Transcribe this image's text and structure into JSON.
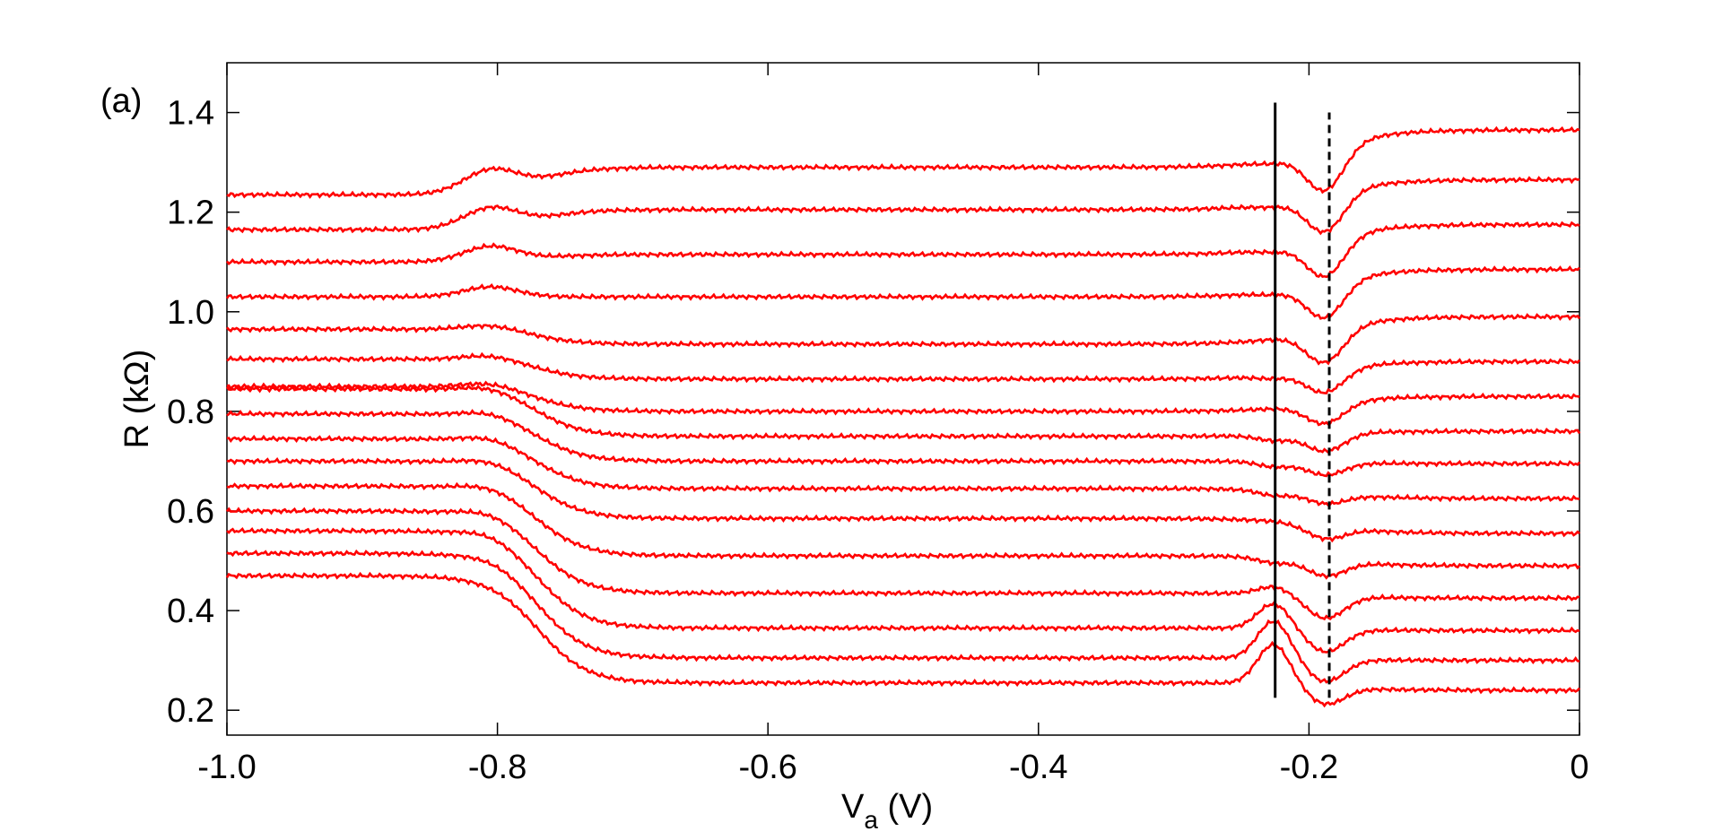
{
  "chart_data": {
    "type": "line",
    "panel_label": "(a)",
    "xlabel_main": "V",
    "xlabel_sub": "a",
    "xlabel_unit": " (V)",
    "ylabel": "R (kΩ)",
    "xlim": [
      -1.0,
      0.0
    ],
    "ylim": [
      0.15,
      1.5
    ],
    "xticks": [
      -1.0,
      -0.8,
      -0.6,
      -0.4,
      -0.2,
      0.0
    ],
    "xtick_labels": [
      "-1.0",
      "-0.8",
      "-0.6",
      "-0.4",
      "-0.2",
      "0"
    ],
    "yticks": [
      0.2,
      0.4,
      0.6,
      0.8,
      1.0,
      1.2,
      1.4
    ],
    "ytick_labels": [
      "0.2",
      "0.4",
      "0.6",
      "0.8",
      "1.0",
      "1.2",
      "1.4"
    ],
    "grid": false,
    "series_color": "#ff0000",
    "series_count": 16,
    "series_model": "piecewise levels: y_left (V<-0.82), bump_1 near -0.81, y_mid (-0.72..-0.26), peak near -0.225, dip near -0.19, y_right (V->0)",
    "series": [
      {
        "y_left": 0.47,
        "bump1": 0.0,
        "y_mid": 0.255,
        "peak": 0.335,
        "dip": 0.205,
        "y_right": 0.24
      },
      {
        "y_left": 0.515,
        "bump1": 0.005,
        "y_mid": 0.305,
        "peak": 0.38,
        "dip": 0.255,
        "y_right": 0.3
      },
      {
        "y_left": 0.56,
        "bump1": 0.01,
        "y_mid": 0.365,
        "peak": 0.415,
        "dip": 0.315,
        "y_right": 0.36
      },
      {
        "y_left": 0.6,
        "bump1": 0.01,
        "y_mid": 0.435,
        "peak": 0.45,
        "dip": 0.38,
        "y_right": 0.425
      },
      {
        "y_left": 0.65,
        "bump1": 0.01,
        "y_mid": 0.51,
        "peak": 0.5,
        "dip": 0.46,
        "y_right": 0.49
      },
      {
        "y_left": 0.7,
        "bump1": 0.01,
        "y_mid": 0.585,
        "peak": 0.585,
        "dip": 0.53,
        "y_right": 0.555
      },
      {
        "y_left": 0.745,
        "bump1": 0.01,
        "y_mid": 0.645,
        "peak": 0.635,
        "dip": 0.605,
        "y_right": 0.625
      },
      {
        "y_left": 0.795,
        "bump1": 0.01,
        "y_mid": 0.7,
        "peak": 0.69,
        "dip": 0.67,
        "y_right": 0.695
      },
      {
        "y_left": 0.845,
        "bump1": 0.01,
        "y_mid": 0.75,
        "peak": 0.74,
        "dip": 0.725,
        "y_right": 0.76
      },
      {
        "y_left": 0.85,
        "bump1": 0.01,
        "y_mid": 0.8,
        "peak": 0.8,
        "dip": 0.79,
        "y_right": 0.83
      },
      {
        "y_left": 0.905,
        "bump1": 0.01,
        "y_mid": 0.865,
        "peak": 0.86,
        "dip": 0.855,
        "y_right": 0.9
      },
      {
        "y_left": 0.965,
        "bump1": 0.01,
        "y_mid": 0.935,
        "peak": 0.935,
        "dip": 0.925,
        "y_right": 0.99
      },
      {
        "y_left": 1.03,
        "bump1": 0.02,
        "y_mid": 1.03,
        "peak": 1.025,
        "dip": 1.015,
        "y_right": 1.085
      },
      {
        "y_left": 1.1,
        "bump1": 0.03,
        "y_mid": 1.115,
        "peak": 1.11,
        "dip": 1.1,
        "y_right": 1.175
      },
      {
        "y_left": 1.165,
        "bump1": 0.04,
        "y_mid": 1.205,
        "peak": 1.2,
        "dip": 1.19,
        "y_right": 1.265
      },
      {
        "y_left": 1.235,
        "bump1": 0.045,
        "y_mid": 1.29,
        "peak": 1.285,
        "dip": 1.28,
        "y_right": 1.365
      }
    ],
    "markers": [
      {
        "x": -0.225,
        "y_from": 0.225,
        "y_to": 1.42,
        "style": "solid",
        "color": "#000000"
      },
      {
        "x": -0.185,
        "y_from": 0.225,
        "y_to": 1.4,
        "style": "dashed",
        "color": "#000000"
      }
    ]
  }
}
